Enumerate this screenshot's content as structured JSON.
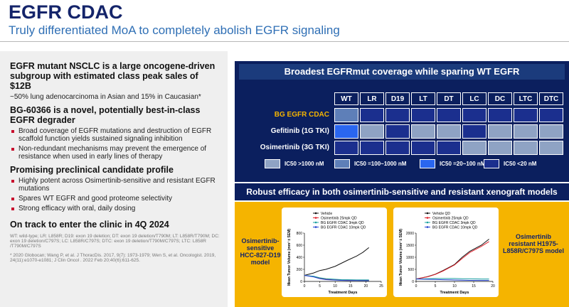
{
  "header": {
    "title": "EGFR CDAC",
    "subtitle": "Truly differentiated MoA to completely abolish EGFR signaling"
  },
  "left": {
    "blocks": [
      {
        "heading": "EGFR mutant NSCLC is a large oncogene-driven subgroup with estimated class peak sales of $12B",
        "text": "~50% lung adenocarcinoma in Asian and 15% in Caucasian*"
      },
      {
        "heading": "BG-60366 is a novel, potentially best-in-class EGFR degrader",
        "bullets": [
          "Broad coverage of EGFR mutations and destruction of EGFR scaffold function yields sustained signaling inhibition",
          "Non-redundant mechanisms may prevent the emergence of resistance when used in early lines of therapy"
        ]
      },
      {
        "heading": "Promising preclinical candidate profile",
        "bullets": [
          "Highly potent across Osimertinib-sensitive and resistant EGFR mutations",
          "Spares WT EGFR and good proteome selectivity",
          "Strong efficacy with oral, daily dosing"
        ]
      },
      {
        "heading": "On track to enter the clinic in 4Q 2024"
      }
    ],
    "footnotes": [
      "WT: wild-type; LR: L858R; D19: exon 19 deletion; DT: exon 19 deletion/T790M; LT: L858R/T790M; DC: exon 19 deletion/C797S; LC: L858R/C797S; DTC: exon 19 deletion/T790M/C797S; LTC: L858R /T790M/C797S",
      "* 2020 Globocan; Wang P, et al. J ThoracDis. 2017, 9(7): 1973-1979; Wen S, et al. Oncologist. 2019, 24(11):e1070-e1081; J Clin Oncol . 2022 Feb 20;40(6):611-625."
    ]
  },
  "heatmap": {
    "title": "Broadest EGFRmut coverage while sparing WT EGFR",
    "columns": [
      "WT",
      "LR",
      "D19",
      "LT",
      "DT",
      "LC",
      "DC",
      "LTC",
      "DTC"
    ],
    "rows": [
      {
        "label": "BG EGFR CDAC",
        "levels": [
          1,
          3,
          3,
          3,
          3,
          3,
          3,
          3,
          3
        ]
      },
      {
        "label": "Gefitinib (1G TKI)",
        "levels": [
          2,
          0,
          3,
          0,
          0,
          3,
          0,
          0,
          0
        ]
      },
      {
        "label": "Osimertinib (3G TKI)",
        "levels": [
          3,
          3,
          3,
          3,
          3,
          0,
          0,
          0,
          0
        ]
      }
    ],
    "legend": [
      {
        "label": "IC50 >1000 nM",
        "color": "#8fa3c4"
      },
      {
        "label": "IC50 =100~1000 nM",
        "color": "#5e7fb8"
      },
      {
        "label": "IC50 =20~100 nM",
        "color": "#2a66f0"
      },
      {
        "label": "IC50 <20 nM",
        "color": "#1b2f8e"
      }
    ]
  },
  "efficacy": {
    "title": "Robust efficacy in both osimertinib-sensitive and resistant xenograft models",
    "models": [
      "Osimertinib-sensitive HCC-827-D19 model",
      "Osimertinib resistant H1975-L858R/C797S model"
    ]
  },
  "chart_data": [
    {
      "type": "line",
      "x_label": "Treatment Days",
      "y_label": "Mean Tumor Volume (mm³ ± SEM)",
      "x": [
        0,
        3,
        5,
        7,
        10,
        12,
        14,
        17,
        19,
        21
      ],
      "xlim": [
        0,
        25
      ],
      "xticks": [
        0,
        5,
        10,
        15,
        20,
        25
      ],
      "ylim": [
        0,
        800
      ],
      "yticks": [
        0,
        200,
        400,
        600,
        800
      ],
      "series": [
        {
          "name": "Vehicle",
          "color": "#111111",
          "values": [
            100,
            140,
            180,
            200,
            250,
            300,
            350,
            420,
            480,
            560
          ]
        },
        {
          "name": "Osimertinib 25mpk QD",
          "color": "#e0202a",
          "values": [
            100,
            80,
            50,
            35,
            25,
            20,
            20,
            18,
            18,
            18
          ]
        },
        {
          "name": "BG EGFR CDAC 3mpk QD",
          "color": "#1aa0a0",
          "values": [
            100,
            85,
            60,
            45,
            35,
            30,
            28,
            25,
            25,
            25
          ]
        },
        {
          "name": "BG EGFR CDAC 10mpk QD",
          "color": "#1f3fd0",
          "values": [
            100,
            75,
            45,
            30,
            22,
            18,
            15,
            14,
            13,
            12
          ]
        }
      ]
    },
    {
      "type": "line",
      "x_label": "Treatment Days",
      "y_label": "Mean Tumor Volume (mm³ ± SEM)",
      "x": [
        0,
        3,
        5,
        7,
        10,
        12,
        14,
        17,
        19
      ],
      "xlim": [
        0,
        20
      ],
      "xticks": [
        0,
        5,
        10,
        15,
        20
      ],
      "ylim": [
        0,
        2000
      ],
      "yticks": [
        0,
        500,
        1000,
        1500,
        2000
      ],
      "series": [
        {
          "name": "Vehicle QD",
          "color": "#111111",
          "values": [
            100,
            200,
            300,
            450,
            700,
            1000,
            1250,
            1500,
            1750
          ]
        },
        {
          "name": "Osimertinib 25mpk QD",
          "color": "#e0202a",
          "values": [
            100,
            190,
            290,
            430,
            680,
            950,
            1200,
            1450,
            1650
          ]
        },
        {
          "name": "BG EGFR CDAC 3mpk QD",
          "color": "#1aa0a0",
          "values": [
            100,
            110,
            120,
            120,
            120,
            110,
            110,
            100,
            100
          ]
        },
        {
          "name": "BG EGFR CDAC 10mpk QD",
          "color": "#1f3fd0",
          "values": [
            100,
            90,
            80,
            70,
            60,
            50,
            45,
            40,
            40
          ]
        }
      ]
    }
  ]
}
